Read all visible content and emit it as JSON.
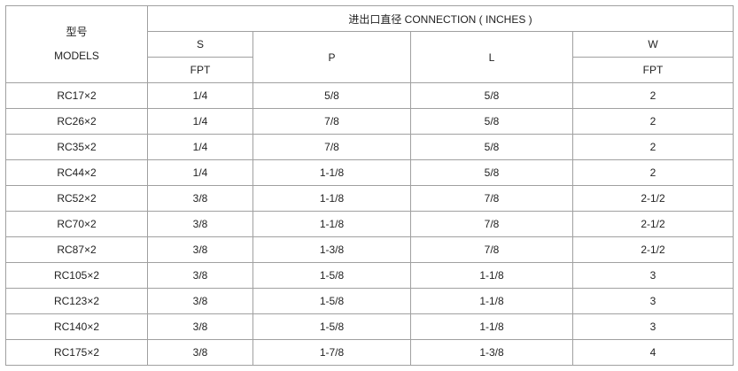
{
  "header": {
    "models_cn": "型号",
    "models_en": "MODELS",
    "connection": "进出口直径 CONNECTION ( INCHES )",
    "s": "S",
    "p": "P",
    "l": "L",
    "w": "W",
    "s_sub": "FPT",
    "w_sub": "FPT"
  },
  "rows": [
    {
      "model": "RC17×2",
      "s": "1/4",
      "p": "5/8",
      "l": "5/8",
      "w": "2"
    },
    {
      "model": "RC26×2",
      "s": "1/4",
      "p": "7/8",
      "l": "5/8",
      "w": "2"
    },
    {
      "model": "RC35×2",
      "s": "1/4",
      "p": "7/8",
      "l": "5/8",
      "w": "2"
    },
    {
      "model": "RC44×2",
      "s": "1/4",
      "p": "1-1/8",
      "l": "5/8",
      "w": "2"
    },
    {
      "model": "RC52×2",
      "s": "3/8",
      "p": "1-1/8",
      "l": "7/8",
      "w": "2-1/2"
    },
    {
      "model": "RC70×2",
      "s": "3/8",
      "p": "1-1/8",
      "l": "7/8",
      "w": "2-1/2"
    },
    {
      "model": "RC87×2",
      "s": "3/8",
      "p": "1-3/8",
      "l": "7/8",
      "w": "2-1/2"
    },
    {
      "model": "RC105×2",
      "s": "3/8",
      "p": "1-5/8",
      "l": "1-1/8",
      "w": "3"
    },
    {
      "model": "RC123×2",
      "s": "3/8",
      "p": "1-5/8",
      "l": "1-1/8",
      "w": "3"
    },
    {
      "model": "RC140×2",
      "s": "3/8",
      "p": "1-5/8",
      "l": "1-1/8",
      "w": "3"
    },
    {
      "model": "RC175×2",
      "s": "3/8",
      "p": "1-7/8",
      "l": "1-3/8",
      "w": "4"
    }
  ]
}
